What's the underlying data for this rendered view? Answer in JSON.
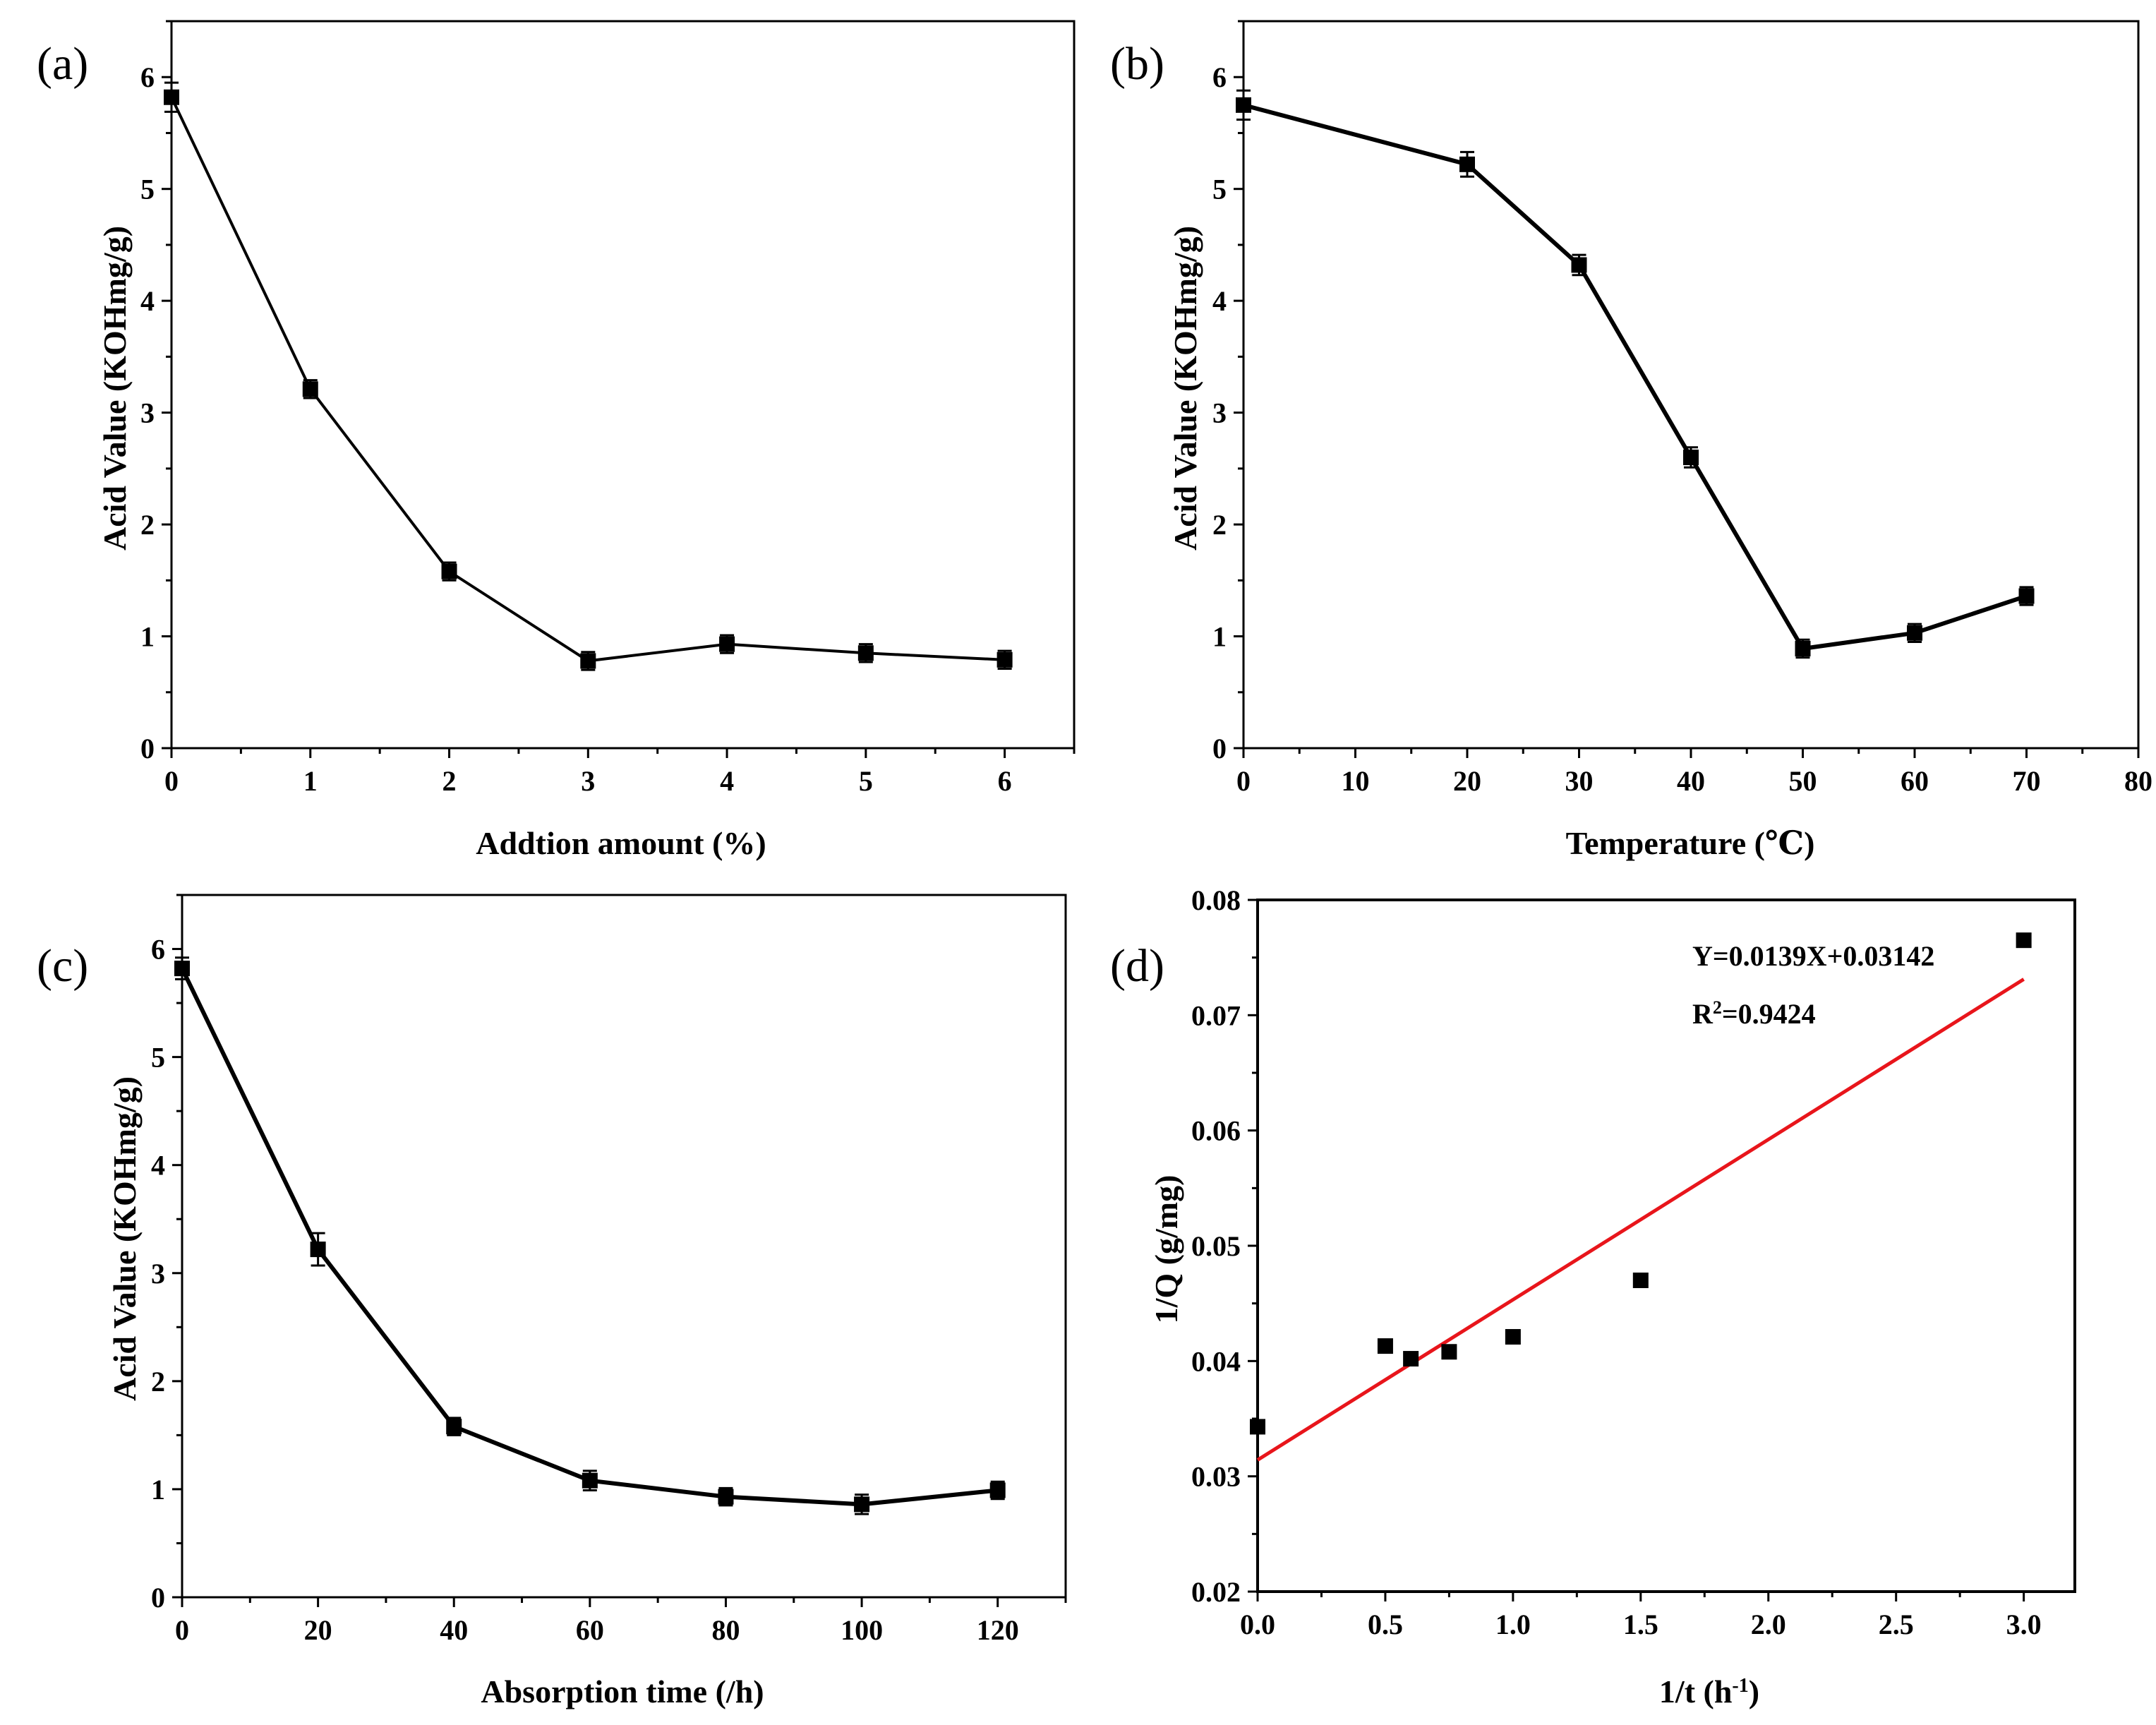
{
  "colors": {
    "series": "#000000",
    "fit": "#e8151b",
    "frame": "#000000"
  },
  "chart_data": [
    {
      "id": "a",
      "type": "line",
      "panel_label": "(a)",
      "xlabel": "Addtion amount (%)",
      "ylabel": "Acid Value (KOHmg/g)",
      "xlim": [
        0,
        6.5
      ],
      "ylim": [
        0,
        6.5
      ],
      "xticks": [
        0,
        1,
        2,
        3,
        4,
        5,
        6
      ],
      "yticks": [
        0,
        1,
        2,
        3,
        4,
        5,
        6
      ],
      "xtick_labels": [
        "0",
        "1",
        "2",
        "3",
        "4",
        "5",
        "6"
      ],
      "ytick_labels": [
        "0",
        "1",
        "2",
        "3",
        "4",
        "5",
        "6"
      ],
      "series": [
        {
          "name": "Acid Value",
          "x": [
            0,
            1,
            2,
            3,
            4,
            5,
            6
          ],
          "y": [
            5.82,
            3.21,
            1.58,
            0.78,
            0.93,
            0.85,
            0.79
          ],
          "err": [
            0.13,
            0.08,
            0.08,
            0.08,
            0.08,
            0.08,
            0.08
          ]
        }
      ]
    },
    {
      "id": "b",
      "type": "line",
      "panel_label": "(b)",
      "xlabel": "Temperature (℃)",
      "ylabel": "Acid Value (KOHmg/g)",
      "xlim": [
        0,
        80
      ],
      "ylim": [
        0,
        6.5
      ],
      "xticks": [
        0,
        10,
        20,
        30,
        40,
        50,
        60,
        70,
        80
      ],
      "yticks": [
        0,
        1,
        2,
        3,
        4,
        5,
        6
      ],
      "xtick_labels": [
        "0",
        "10",
        "20",
        "30",
        "40",
        "50",
        "60",
        "70",
        "80"
      ],
      "ytick_labels": [
        "0",
        "1",
        "2",
        "3",
        "4",
        "5",
        "6"
      ],
      "series": [
        {
          "name": "Acid Value",
          "x": [
            0,
            20,
            30,
            40,
            50,
            60,
            70
          ],
          "y": [
            5.75,
            5.22,
            4.32,
            2.6,
            0.89,
            1.03,
            1.36
          ],
          "err": [
            0.13,
            0.11,
            0.09,
            0.09,
            0.08,
            0.08,
            0.08
          ]
        }
      ]
    },
    {
      "id": "c",
      "type": "line",
      "panel_label": "(c)",
      "xlabel": "Absorption time (/h)",
      "ylabel": "Acid Value (KOHmg/g)",
      "xlim": [
        0,
        130
      ],
      "ylim": [
        0,
        6.5
      ],
      "xticks": [
        0,
        20,
        40,
        60,
        80,
        100,
        120
      ],
      "yticks": [
        0,
        1,
        2,
        3,
        4,
        5,
        6
      ],
      "xtick_labels": [
        "0",
        "20",
        "40",
        "60",
        "80",
        "100",
        "120"
      ],
      "ytick_labels": [
        "0",
        "1",
        "2",
        "3",
        "4",
        "5",
        "6"
      ],
      "series": [
        {
          "name": "Acid Value",
          "x": [
            0,
            20,
            40,
            60,
            80,
            100,
            120
          ],
          "y": [
            5.82,
            3.22,
            1.58,
            1.08,
            0.93,
            0.86,
            0.99
          ],
          "err": [
            0.1,
            0.15,
            0.08,
            0.09,
            0.08,
            0.09,
            0.08
          ]
        }
      ]
    },
    {
      "id": "d",
      "type": "scatter",
      "panel_label": "(d)",
      "xlabel_main": "1/t (h",
      "xlabel_sup": "-1",
      "xlabel_close": ")",
      "ylabel": "1/Q (g/mg)",
      "xlim": [
        0,
        3.2
      ],
      "ylim": [
        0.02,
        0.08
      ],
      "xticks": [
        0,
        0.5,
        1,
        1.5,
        2,
        2.5,
        3
      ],
      "yticks": [
        0.02,
        0.03,
        0.04,
        0.05,
        0.06,
        0.07,
        0.08
      ],
      "xtick_labels": [
        "0.0",
        "0.5",
        "1.0",
        "1.5",
        "2.0",
        "2.5",
        "3.0"
      ],
      "ytick_labels": [
        "0.02",
        "0.03",
        "0.04",
        "0.05",
        "0.06",
        "0.07",
        "0.08"
      ],
      "points": {
        "x": [
          0,
          0.5,
          0.6,
          0.75,
          1.0,
          1.5,
          3.0
        ],
        "y": [
          0.0343,
          0.0413,
          0.0402,
          0.0408,
          0.0421,
          0.047,
          0.0765
        ]
      },
      "fit": {
        "slope": 0.0139,
        "intercept": 0.03142,
        "x_range": [
          0,
          3.0
        ]
      },
      "equation_text": "Y=0.0139X+0.03142",
      "r2_prefix": "R",
      "r2_sup": "2",
      "r2_value": "=0.9424"
    }
  ]
}
